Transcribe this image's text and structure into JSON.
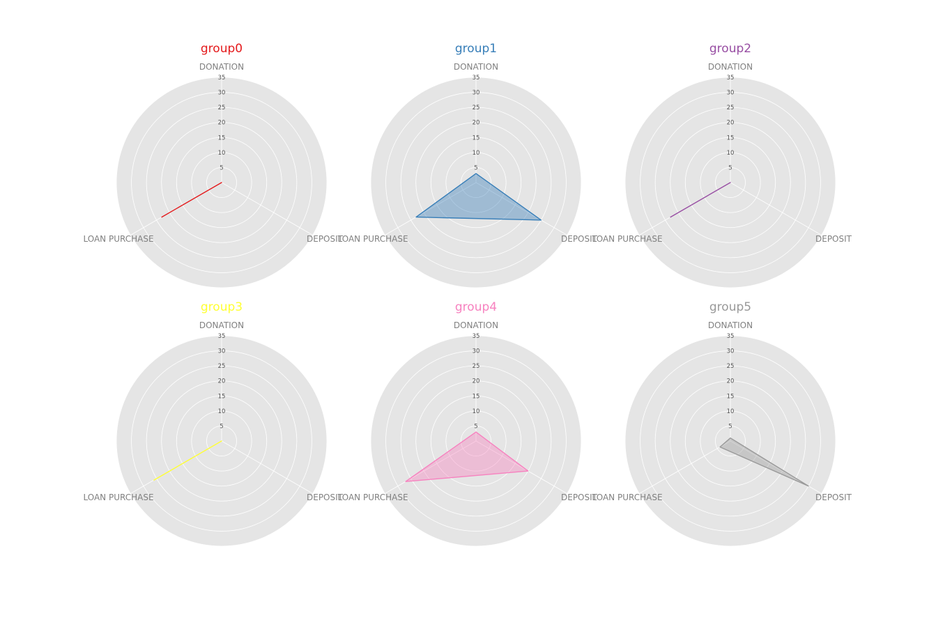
{
  "chart_data": [
    {
      "type": "radar",
      "title": "group0",
      "color": "#e41a1c",
      "categories": [
        "DONATION",
        "DEPOSIT",
        "LOAN PURCHASE"
      ],
      "values": [
        0,
        0,
        23
      ],
      "rticks": [
        "5",
        "10",
        "15",
        "20",
        "25",
        "30",
        "35"
      ],
      "rlim": [
        0,
        35
      ],
      "filled": false
    },
    {
      "type": "radar",
      "title": "group1",
      "color": "#377eb8",
      "categories": [
        "DONATION",
        "DEPOSIT",
        "LOAN PURCHASE"
      ],
      "values": [
        3,
        25,
        23
      ],
      "rticks": [
        "5",
        "10",
        "15",
        "20",
        "25",
        "30",
        "35"
      ],
      "rlim": [
        0,
        35
      ],
      "filled": true
    },
    {
      "type": "radar",
      "title": "group2",
      "color": "#984ea3",
      "categories": [
        "DONATION",
        "DEPOSIT",
        "LOAN PURCHASE"
      ],
      "values": [
        0,
        0,
        23
      ],
      "rticks": [
        "5",
        "10",
        "15",
        "20",
        "25",
        "30",
        "35"
      ],
      "rlim": [
        0,
        35
      ],
      "filled": false
    },
    {
      "type": "radar",
      "title": "group3",
      "color": "#ffff33",
      "categories": [
        "DONATION",
        "DEPOSIT",
        "LOAN PURCHASE"
      ],
      "values": [
        0,
        0,
        26
      ],
      "rticks": [
        "5",
        "10",
        "15",
        "20",
        "25",
        "30",
        "35"
      ],
      "rlim": [
        0,
        35
      ],
      "filled": false
    },
    {
      "type": "radar",
      "title": "group4",
      "color": "#f781bf",
      "categories": [
        "DONATION",
        "DEPOSIT",
        "LOAN PURCHASE"
      ],
      "values": [
        3,
        20,
        27
      ],
      "rticks": [
        "5",
        "10",
        "15",
        "20",
        "25",
        "30",
        "35"
      ],
      "rlim": [
        0,
        35
      ],
      "filled": true
    },
    {
      "type": "radar",
      "title": "group5",
      "color": "#999999",
      "categories": [
        "DONATION",
        "DEPOSIT",
        "LOAN PURCHASE"
      ],
      "values": [
        1,
        30,
        4
      ],
      "rticks": [
        "5",
        "10",
        "15",
        "20",
        "25",
        "30",
        "35"
      ],
      "rlim": [
        0,
        35
      ],
      "filled": true
    }
  ]
}
